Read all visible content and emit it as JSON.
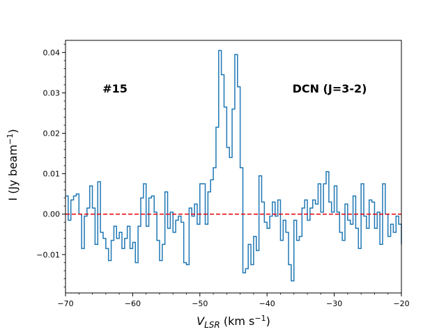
{
  "chart_data": {
    "type": "line",
    "style": "step",
    "title": "",
    "xlabel": "V_LSR (km s^-1)",
    "xlabel_parts": {
      "main": "V",
      "sub": "LSR",
      "unit": " (km s",
      "sup": "−1",
      "close": ")"
    },
    "ylabel": "I (Jy beam^-1)",
    "ylabel_parts": {
      "main": "I (Jy beam",
      "sup": "−1",
      "close": ")"
    },
    "xlim": [
      -70,
      -20
    ],
    "ylim": [
      -0.0195,
      0.043
    ],
    "x_ticks": [
      -70,
      -60,
      -50,
      -40,
      -30,
      -20
    ],
    "x_tick_labels": [
      "−70",
      "−60",
      "−50",
      "−40",
      "−30",
      "−20"
    ],
    "y_ticks": [
      -0.01,
      0.0,
      0.01,
      0.02,
      0.03,
      0.04
    ],
    "y_tick_labels": [
      "−0.01",
      "0.00",
      "0.01",
      "0.02",
      "0.03",
      "0.04"
    ],
    "annotations": [
      "#15",
      "DCN (J=3-2)"
    ],
    "baseline": {
      "y": 0.0,
      "color": "#e8000b",
      "style": "dashed"
    },
    "series": [
      {
        "name": "DCN (J=3-2) spectrum",
        "color": "#1f77b4",
        "x": [
          -70.0,
          -69.6,
          -69.2,
          -68.8,
          -68.4,
          -68.0,
          -67.6,
          -67.2,
          -66.8,
          -66.4,
          -66.0,
          -65.6,
          -65.2,
          -64.8,
          -64.4,
          -64.0,
          -63.6,
          -63.2,
          -62.8,
          -62.4,
          -62.0,
          -61.6,
          -61.2,
          -60.8,
          -60.4,
          -60.0,
          -59.6,
          -59.2,
          -58.8,
          -58.4,
          -58.0,
          -57.6,
          -57.2,
          -56.8,
          -56.4,
          -56.0,
          -55.6,
          -55.2,
          -54.8,
          -54.4,
          -54.0,
          -53.6,
          -53.2,
          -52.8,
          -52.4,
          -52.0,
          -51.6,
          -51.2,
          -50.8,
          -50.4,
          -50.0,
          -49.6,
          -49.2,
          -48.8,
          -48.4,
          -48.0,
          -47.6,
          -47.2,
          -46.8,
          -46.4,
          -46.0,
          -45.6,
          -45.2,
          -44.8,
          -44.4,
          -44.0,
          -43.6,
          -43.2,
          -42.8,
          -42.4,
          -42.0,
          -41.6,
          -41.2,
          -40.8,
          -40.4,
          -40.0,
          -39.6,
          -39.2,
          -38.8,
          -38.4,
          -38.0,
          -37.6,
          -37.2,
          -36.8,
          -36.4,
          -36.0,
          -35.6,
          -35.2,
          -34.8,
          -34.4,
          -34.0,
          -33.6,
          -33.2,
          -32.8,
          -32.4,
          -32.0,
          -31.6,
          -31.2,
          -30.8,
          -30.4,
          -30.0,
          -29.6,
          -29.2,
          -28.8,
          -28.4,
          -28.0,
          -27.6,
          -27.2,
          -26.8,
          -26.4,
          -26.0,
          -25.6,
          -25.2,
          -24.8,
          -24.4,
          -24.0,
          -23.6,
          -23.2,
          -22.8,
          -22.4,
          -22.0,
          -21.6,
          -21.2,
          -20.8,
          -20.4,
          -20.0
        ],
        "values": [
          0.0045,
          -0.0015,
          0.0035,
          0.0045,
          0.005,
          0.0,
          -0.0085,
          -0.0005,
          0.0015,
          0.007,
          0.0015,
          -0.0075,
          0.008,
          -0.0045,
          -0.006,
          -0.0085,
          -0.0115,
          -0.0065,
          -0.003,
          -0.006,
          -0.0045,
          -0.0085,
          -0.006,
          -0.003,
          -0.0085,
          -0.007,
          -0.012,
          -0.003,
          0.004,
          0.0075,
          -0.003,
          0.004,
          0.0045,
          0.0005,
          -0.0065,
          -0.0115,
          -0.0075,
          0.0055,
          -0.0035,
          0.0005,
          -0.0045,
          -0.0015,
          -0.0005,
          -0.002,
          -0.012,
          -0.0125,
          0.0015,
          -0.0005,
          0.0025,
          -0.0025,
          0.0075,
          0.0075,
          -0.0025,
          0.0055,
          0.0085,
          0.0115,
          0.0215,
          0.0405,
          0.0345,
          0.0265,
          0.0165,
          0.014,
          0.026,
          0.0395,
          0.0315,
          0.0115,
          -0.0145,
          -0.0135,
          -0.0075,
          -0.0125,
          -0.0055,
          -0.009,
          0.0095,
          0.003,
          -0.002,
          -0.0035,
          -0.0005,
          0.003,
          -0.0005,
          0.0035,
          -0.0065,
          -0.0015,
          -0.0045,
          -0.0125,
          -0.0165,
          -0.0015,
          -0.0065,
          -0.0055,
          0.0015,
          0.0035,
          -0.0015,
          0.0015,
          0.0035,
          0.0025,
          0.0075,
          0.0005,
          0.0075,
          0.0105,
          0.003,
          0.0005,
          0.007,
          0.0005,
          -0.0045,
          -0.0065,
          0.0025,
          -0.0015,
          -0.0025,
          0.0045,
          -0.0035,
          -0.0085,
          0.0075,
          -0.0005,
          -0.0035,
          0.0035,
          0.003,
          -0.0035,
          0.0005,
          -0.0075,
          0.0075,
          0.0,
          -0.0055,
          -0.0025,
          -0.0045,
          -0.0005,
          -0.0025,
          -0.0075
        ]
      }
    ]
  }
}
